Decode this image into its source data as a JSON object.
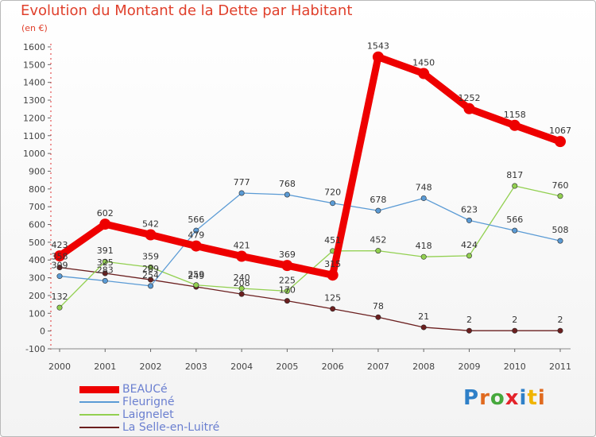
{
  "title": "Evolution du Montant de la Dette par Habitant",
  "subtitle": "(en €)",
  "brand": {
    "text": "Proxiti",
    "letter_colors": [
      "#2f80c8",
      "#e06a1f",
      "#46a83c",
      "#e4232a",
      "#2f80c8",
      "#f0b400",
      "#e06a1f"
    ]
  },
  "chart_data": {
    "type": "line",
    "title": "Evolution du Montant de la Dette par Habitant",
    "subtitle": "(en €)",
    "xlabel": "",
    "ylabel": "",
    "x": [
      "2000",
      "2001",
      "2002",
      "2003",
      "2004",
      "2005",
      "2006",
      "2007",
      "2008",
      "2009",
      "2010",
      "2011"
    ],
    "ylim": [
      -100,
      1600
    ],
    "yticks": [
      -100,
      0,
      100,
      200,
      300,
      400,
      500,
      600,
      700,
      800,
      900,
      1000,
      1100,
      1200,
      1300,
      1400,
      1500,
      1600
    ],
    "grid": false,
    "legend_position": "bottom-left",
    "series": [
      {
        "name": "BEAUCé",
        "color": "#ee0000",
        "values": [
          423,
          602,
          542,
          479,
          421,
          369,
          315,
          1543,
          1450,
          1252,
          1158,
          1067
        ]
      },
      {
        "name": "Fleurigné",
        "color": "#5b9bd5",
        "values": [
          309,
          283,
          254,
          566,
          777,
          768,
          720,
          678,
          748,
          623,
          566,
          508
        ]
      },
      {
        "name": "Laignelet",
        "color": "#92d050",
        "values": [
          132,
          391,
          359,
          259,
          240,
          225,
          451,
          452,
          418,
          424,
          817,
          760
        ]
      },
      {
        "name": "La Selle-en-Luitré",
        "color": "#6b1f1f",
        "values": [
          358,
          325,
          289,
          249,
          208,
          170,
          125,
          78,
          21,
          2,
          2,
          2
        ]
      }
    ]
  }
}
